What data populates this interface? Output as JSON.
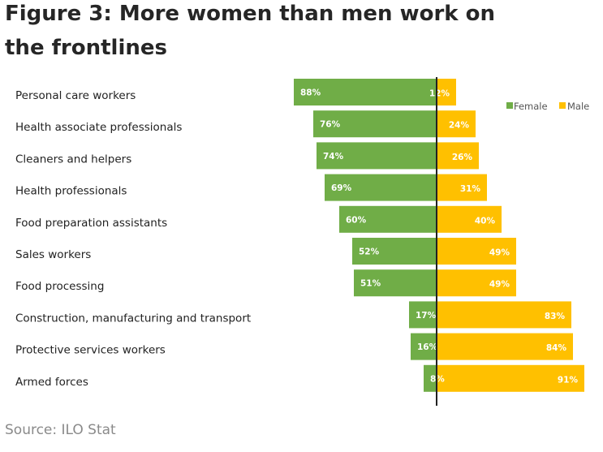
{
  "title": "Figure 3: More women than men work on the frontlines",
  "source": "Source: ILO Stat",
  "colors": {
    "female": "#70ad47",
    "male": "#ffc000",
    "axis": "#222222"
  },
  "chart_data": {
    "type": "bar",
    "orientation": "horizontal-diverging",
    "categories": [
      "Personal care workers",
      "Health associate professionals",
      "Cleaners and helpers",
      "Health professionals",
      "Food preparation assistants",
      "Sales workers",
      "Food processing",
      "Construction, manufacturing and transport",
      "Protective services workers",
      "Armed forces"
    ],
    "series": [
      {
        "name": "Female",
        "values": [
          88,
          76,
          74,
          69,
          60,
          52,
          51,
          17,
          16,
          8
        ],
        "labels": [
          "88%",
          "76%",
          "74%",
          "69%",
          "60%",
          "52%",
          "51%",
          "17%",
          "16%",
          "8%"
        ]
      },
      {
        "name": "Male",
        "values": [
          12,
          24,
          26,
          31,
          40,
          49,
          49,
          83,
          84,
          91
        ],
        "labels": [
          "12%",
          "24%",
          "26%",
          "31%",
          "40%",
          "49%",
          "49%",
          "83%",
          "84%",
          "91%"
        ]
      }
    ],
    "unit": "%",
    "legend_position": "top-right",
    "grid": false
  }
}
